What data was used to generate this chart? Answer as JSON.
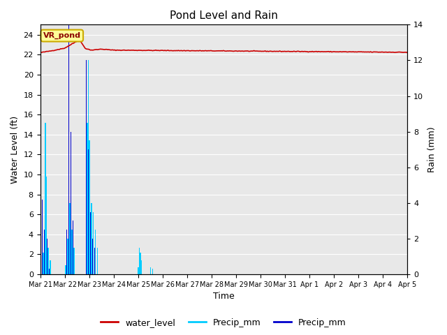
{
  "title": "Pond Level and Rain",
  "xlabel": "Time",
  "ylabel_left": "Water Level (ft)",
  "ylabel_right": "Rain (mm)",
  "annotation_text": "VR_pond",
  "left_ylim": [
    0,
    25
  ],
  "right_ylim": [
    0,
    14
  ],
  "left_yticks": [
    0,
    2,
    4,
    6,
    8,
    10,
    12,
    14,
    16,
    18,
    20,
    22,
    24
  ],
  "right_yticks": [
    0,
    2,
    4,
    6,
    8,
    10,
    12,
    14
  ],
  "background_color": "#e8e8e8",
  "fig_background": "#ffffff",
  "water_level_color": "#cc0000",
  "precip_cyan_color": "#00ccff",
  "precip_blue_color": "#0000cc",
  "legend_labels": [
    "water_level",
    "Precip_mm",
    "Precip_mm"
  ],
  "xtick_labels": [
    "Mar 21",
    "Mar 22",
    "Mar 23",
    "Mar 24",
    "Mar 25",
    "Mar 26",
    "Mar 27",
    "Mar 28",
    "Mar 29",
    "Mar 30",
    "Mar 31",
    "Apr 1",
    "Apr 2",
    "Apr 3",
    "Apr 4",
    "Apr 5"
  ],
  "n_days": 15,
  "n_per_day": 24,
  "title_fontsize": 11,
  "label_fontsize": 9,
  "tick_fontsize": 8
}
